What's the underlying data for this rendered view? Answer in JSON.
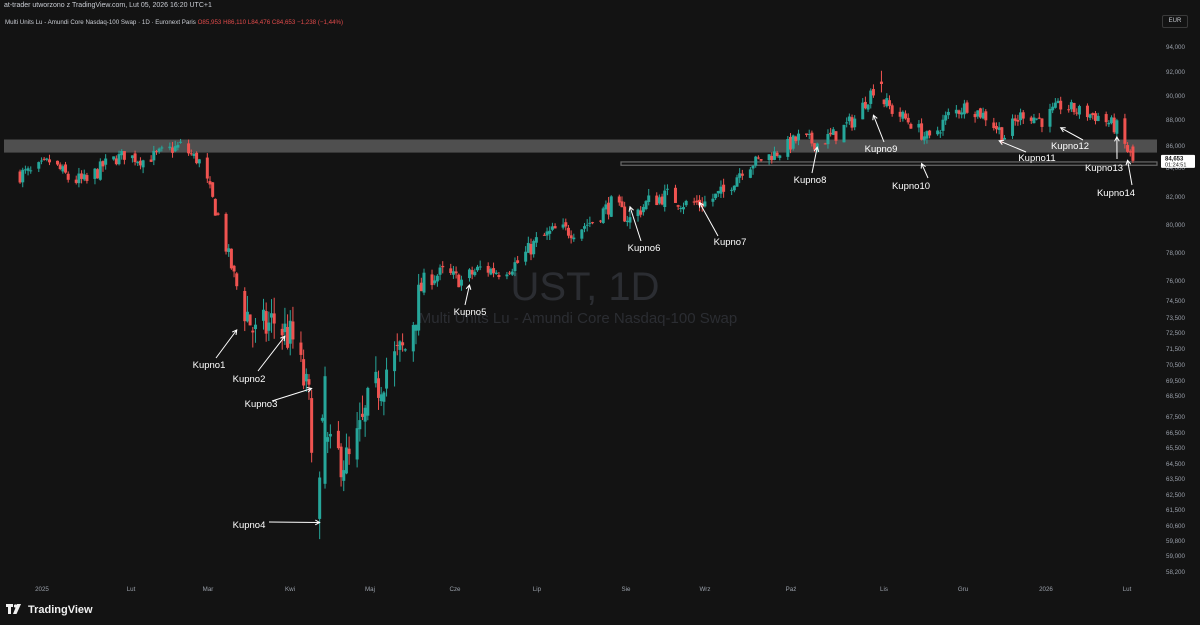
{
  "header": {
    "text": "at-trader utworzono z TradingView.com, Lut 05, 2026 16:20 UTC+1"
  },
  "legend": {
    "symbol": "Multi Units Lu - Amundi Core Nasdaq-100 Swap · 1D · Euronext Paris",
    "o": "O85,953",
    "h": "H86,110",
    "l": "L84,476",
    "c": "C84,653",
    "chg": "−1,238 (−1,44%)"
  },
  "currency": "EUR",
  "watermark": {
    "title": "UST, 1D",
    "subtitle": "Multi Units Lu - Amundi Core Nasdaq-100 Swap"
  },
  "footer": {
    "brand": "TradingView"
  },
  "colors": {
    "up": "#26a69a",
    "down": "#ef5350",
    "background": "#131313",
    "zone": "#5a5a5a",
    "price_label": "#ffffff"
  },
  "chart_data": {
    "type": "candlestick",
    "ylim": [
      57.8,
      95.2
    ],
    "yticks": [
      "58,200",
      "59,000",
      "59,800",
      "60,600",
      "61,500",
      "62,500",
      "63,500",
      "64,500",
      "65,500",
      "66,500",
      "67,500",
      "68,500",
      "69,500",
      "70,500",
      "71,500",
      "72,500",
      "73,500",
      "74,500",
      "76,000",
      "78,000",
      "80,000",
      "82,000",
      "84,000",
      "86,000",
      "88,000",
      "90,000",
      "92,000",
      "94,000"
    ],
    "xticks": [
      "2025",
      "Lut",
      "Mar",
      "Kwi",
      "Maj",
      "Cze",
      "Lip",
      "Sie",
      "Wrz",
      "Paź",
      "Lis",
      "Gru",
      "2026",
      "Lut"
    ],
    "last_price": {
      "value": "84,653",
      "countdown": "01:24:51",
      "y": 84.653
    },
    "zones": [
      {
        "y_low": 85.4,
        "y_high": 86.5,
        "start": "2025"
      },
      {
        "y_low": 84.25,
        "y_high": 84.55,
        "start": "Sie"
      }
    ],
    "annotations": [
      {
        "label": "Kupno1",
        "x": "2025-03-07",
        "y": 72.7
      },
      {
        "label": "Kupno2",
        "x": "2025-03-25",
        "y": 72.3
      },
      {
        "label": "Kupno3",
        "x": "2025-04-04",
        "y": 69.0
      },
      {
        "label": "Kupno4",
        "x": "2025-04-07",
        "y": 60.8
      },
      {
        "label": "Kupno5",
        "x": "2025-06-02",
        "y": 75.7
      },
      {
        "label": "Kupno6",
        "x": "2025-08-01",
        "y": 81.3
      },
      {
        "label": "Kupno7",
        "x": "2025-08-27",
        "y": 81.6
      },
      {
        "label": "Kupno8",
        "x": "2025-10-10",
        "y": 85.9
      },
      {
        "label": "Kupno9",
        "x": "2025-10-31",
        "y": 88.4
      },
      {
        "label": "Kupno10",
        "x": "2025-11-18",
        "y": 84.4
      },
      {
        "label": "Kupno11",
        "x": "2025-12-17",
        "y": 86.4
      },
      {
        "label": "Kupno12",
        "x": "2026-01-09",
        "y": 87.4
      },
      {
        "label": "Kupno13",
        "x": "2026-01-30",
        "y": 86.7
      },
      {
        "label": "Kupno14",
        "x": "2026-02-03",
        "y": 84.7
      }
    ],
    "closes_weekly": [
      [
        "2024-12-20",
        83.6
      ],
      [
        "2024-12-27",
        84.6
      ],
      [
        "2025-01-03",
        83.3
      ],
      [
        "2025-01-10",
        83.0
      ],
      [
        "2025-01-17",
        84.4
      ],
      [
        "2025-01-24",
        85.2
      ],
      [
        "2025-01-31",
        84.7
      ],
      [
        "2025-02-07",
        85.4
      ],
      [
        "2025-02-14",
        86.0
      ],
      [
        "2025-02-21",
        84.6
      ],
      [
        "2025-02-28",
        80.6
      ],
      [
        "2025-03-07",
        75.6
      ],
      [
        "2025-03-14",
        72.3
      ],
      [
        "2025-03-21",
        73.3
      ],
      [
        "2025-03-28",
        72.0
      ],
      [
        "2025-04-04",
        67.6
      ],
      [
        "2025-04-11",
        65.2
      ],
      [
        "2025-04-18",
        64.6
      ],
      [
        "2025-04-25",
        67.8
      ],
      [
        "2025-05-02",
        70.3
      ],
      [
        "2025-05-09",
        71.5
      ],
      [
        "2025-05-16",
        76.0
      ],
      [
        "2025-05-23",
        76.6
      ],
      [
        "2025-05-30",
        76.0
      ],
      [
        "2025-06-06",
        76.9
      ],
      [
        "2025-06-13",
        76.7
      ],
      [
        "2025-06-20",
        77.3
      ],
      [
        "2025-06-27",
        78.8
      ],
      [
        "2025-07-04",
        79.6
      ],
      [
        "2025-07-11",
        79.6
      ],
      [
        "2025-07-18",
        80.3
      ],
      [
        "2025-07-25",
        81.5
      ],
      [
        "2025-08-01",
        80.4
      ],
      [
        "2025-08-08",
        81.7
      ],
      [
        "2025-08-15",
        82.1
      ],
      [
        "2025-08-22",
        81.5
      ],
      [
        "2025-08-29",
        81.6
      ],
      [
        "2025-09-05",
        82.3
      ],
      [
        "2025-09-12",
        84.0
      ],
      [
        "2025-09-19",
        84.8
      ],
      [
        "2025-09-26",
        85.5
      ],
      [
        "2025-10-03",
        86.6
      ],
      [
        "2025-10-10",
        86.2
      ],
      [
        "2025-10-17",
        86.9
      ],
      [
        "2025-10-24",
        88.1
      ],
      [
        "2025-10-31",
        90.6
      ],
      [
        "2025-11-07",
        88.8
      ],
      [
        "2025-11-14",
        87.8
      ],
      [
        "2025-11-21",
        86.4
      ],
      [
        "2025-11-28",
        88.4
      ],
      [
        "2025-12-05",
        89.2
      ],
      [
        "2025-12-12",
        88.3
      ],
      [
        "2025-12-19",
        86.8
      ],
      [
        "2025-12-26",
        88.6
      ],
      [
        "2026-01-02",
        88.0
      ],
      [
        "2026-01-09",
        89.2
      ],
      [
        "2026-01-16",
        88.7
      ],
      [
        "2026-01-23",
        88.3
      ],
      [
        "2026-01-30",
        87.4
      ],
      [
        "2026-02-05",
        84.653
      ]
    ]
  }
}
